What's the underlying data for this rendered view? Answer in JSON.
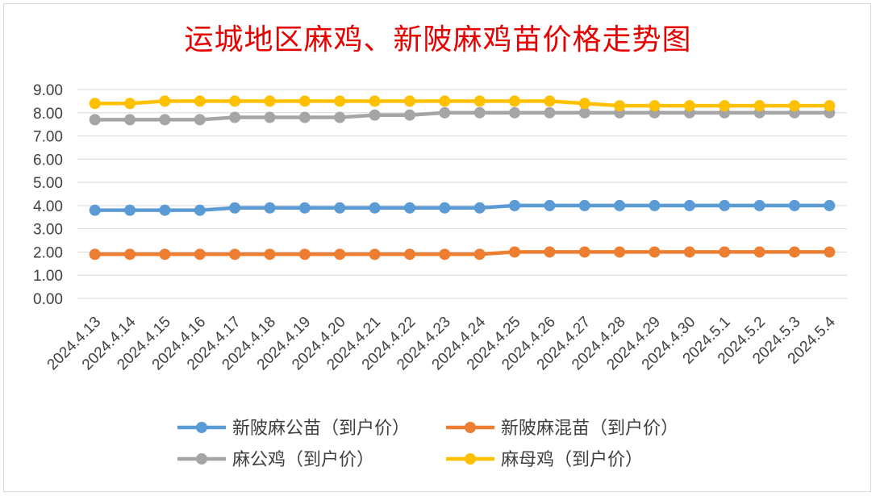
{
  "chart_data": {
    "type": "line",
    "title": "运城地区麻鸡、新陂麻鸡苗价格走势图",
    "xlabel": "",
    "ylabel": "",
    "ylim": [
      0,
      9
    ],
    "y_ticks": [
      "0.00",
      "1.00",
      "2.00",
      "3.00",
      "4.00",
      "5.00",
      "6.00",
      "7.00",
      "8.00",
      "9.00"
    ],
    "grid": true,
    "legend_position": "bottom",
    "categories": [
      "2024.4.13",
      "2024.4.14",
      "2024.4.15",
      "2024.4.16",
      "2024.4.17",
      "2024.4.18",
      "2024.4.19",
      "2024.4.20",
      "2024.4.21",
      "2024.4.22",
      "2024.4.23",
      "2024.4.24",
      "2024.4.25",
      "2024.4.26",
      "2024.4.27",
      "2024.4.28",
      "2024.4.29",
      "2024.4.30",
      "2024.5.1",
      "2024.5.2",
      "2024.5.3",
      "2024.5.4"
    ],
    "series": [
      {
        "name": "新陂麻公苗（到户价）",
        "color": "#5b9bd5",
        "values": [
          3.8,
          3.8,
          3.8,
          3.8,
          3.9,
          3.9,
          3.9,
          3.9,
          3.9,
          3.9,
          3.9,
          3.9,
          4.0,
          4.0,
          4.0,
          4.0,
          4.0,
          4.0,
          4.0,
          4.0,
          4.0,
          4.0
        ]
      },
      {
        "name": "新陂麻混苗（到户价）",
        "color": "#ed7d31",
        "values": [
          1.9,
          1.9,
          1.9,
          1.9,
          1.9,
          1.9,
          1.9,
          1.9,
          1.9,
          1.9,
          1.9,
          1.9,
          2.0,
          2.0,
          2.0,
          2.0,
          2.0,
          2.0,
          2.0,
          2.0,
          2.0,
          2.0
        ]
      },
      {
        "name": "麻公鸡（到户价）",
        "color": "#a5a5a5",
        "values": [
          7.7,
          7.7,
          7.7,
          7.7,
          7.8,
          7.8,
          7.8,
          7.8,
          7.9,
          7.9,
          8.0,
          8.0,
          8.0,
          8.0,
          8.0,
          8.0,
          8.0,
          8.0,
          8.0,
          8.0,
          8.0,
          8.0
        ]
      },
      {
        "name": "麻母鸡（到户价）",
        "color": "#ffc000",
        "values": [
          8.4,
          8.4,
          8.5,
          8.5,
          8.5,
          8.5,
          8.5,
          8.5,
          8.5,
          8.5,
          8.5,
          8.5,
          8.5,
          8.5,
          8.4,
          8.3,
          8.3,
          8.3,
          8.3,
          8.3,
          8.3,
          8.3
        ]
      }
    ]
  }
}
